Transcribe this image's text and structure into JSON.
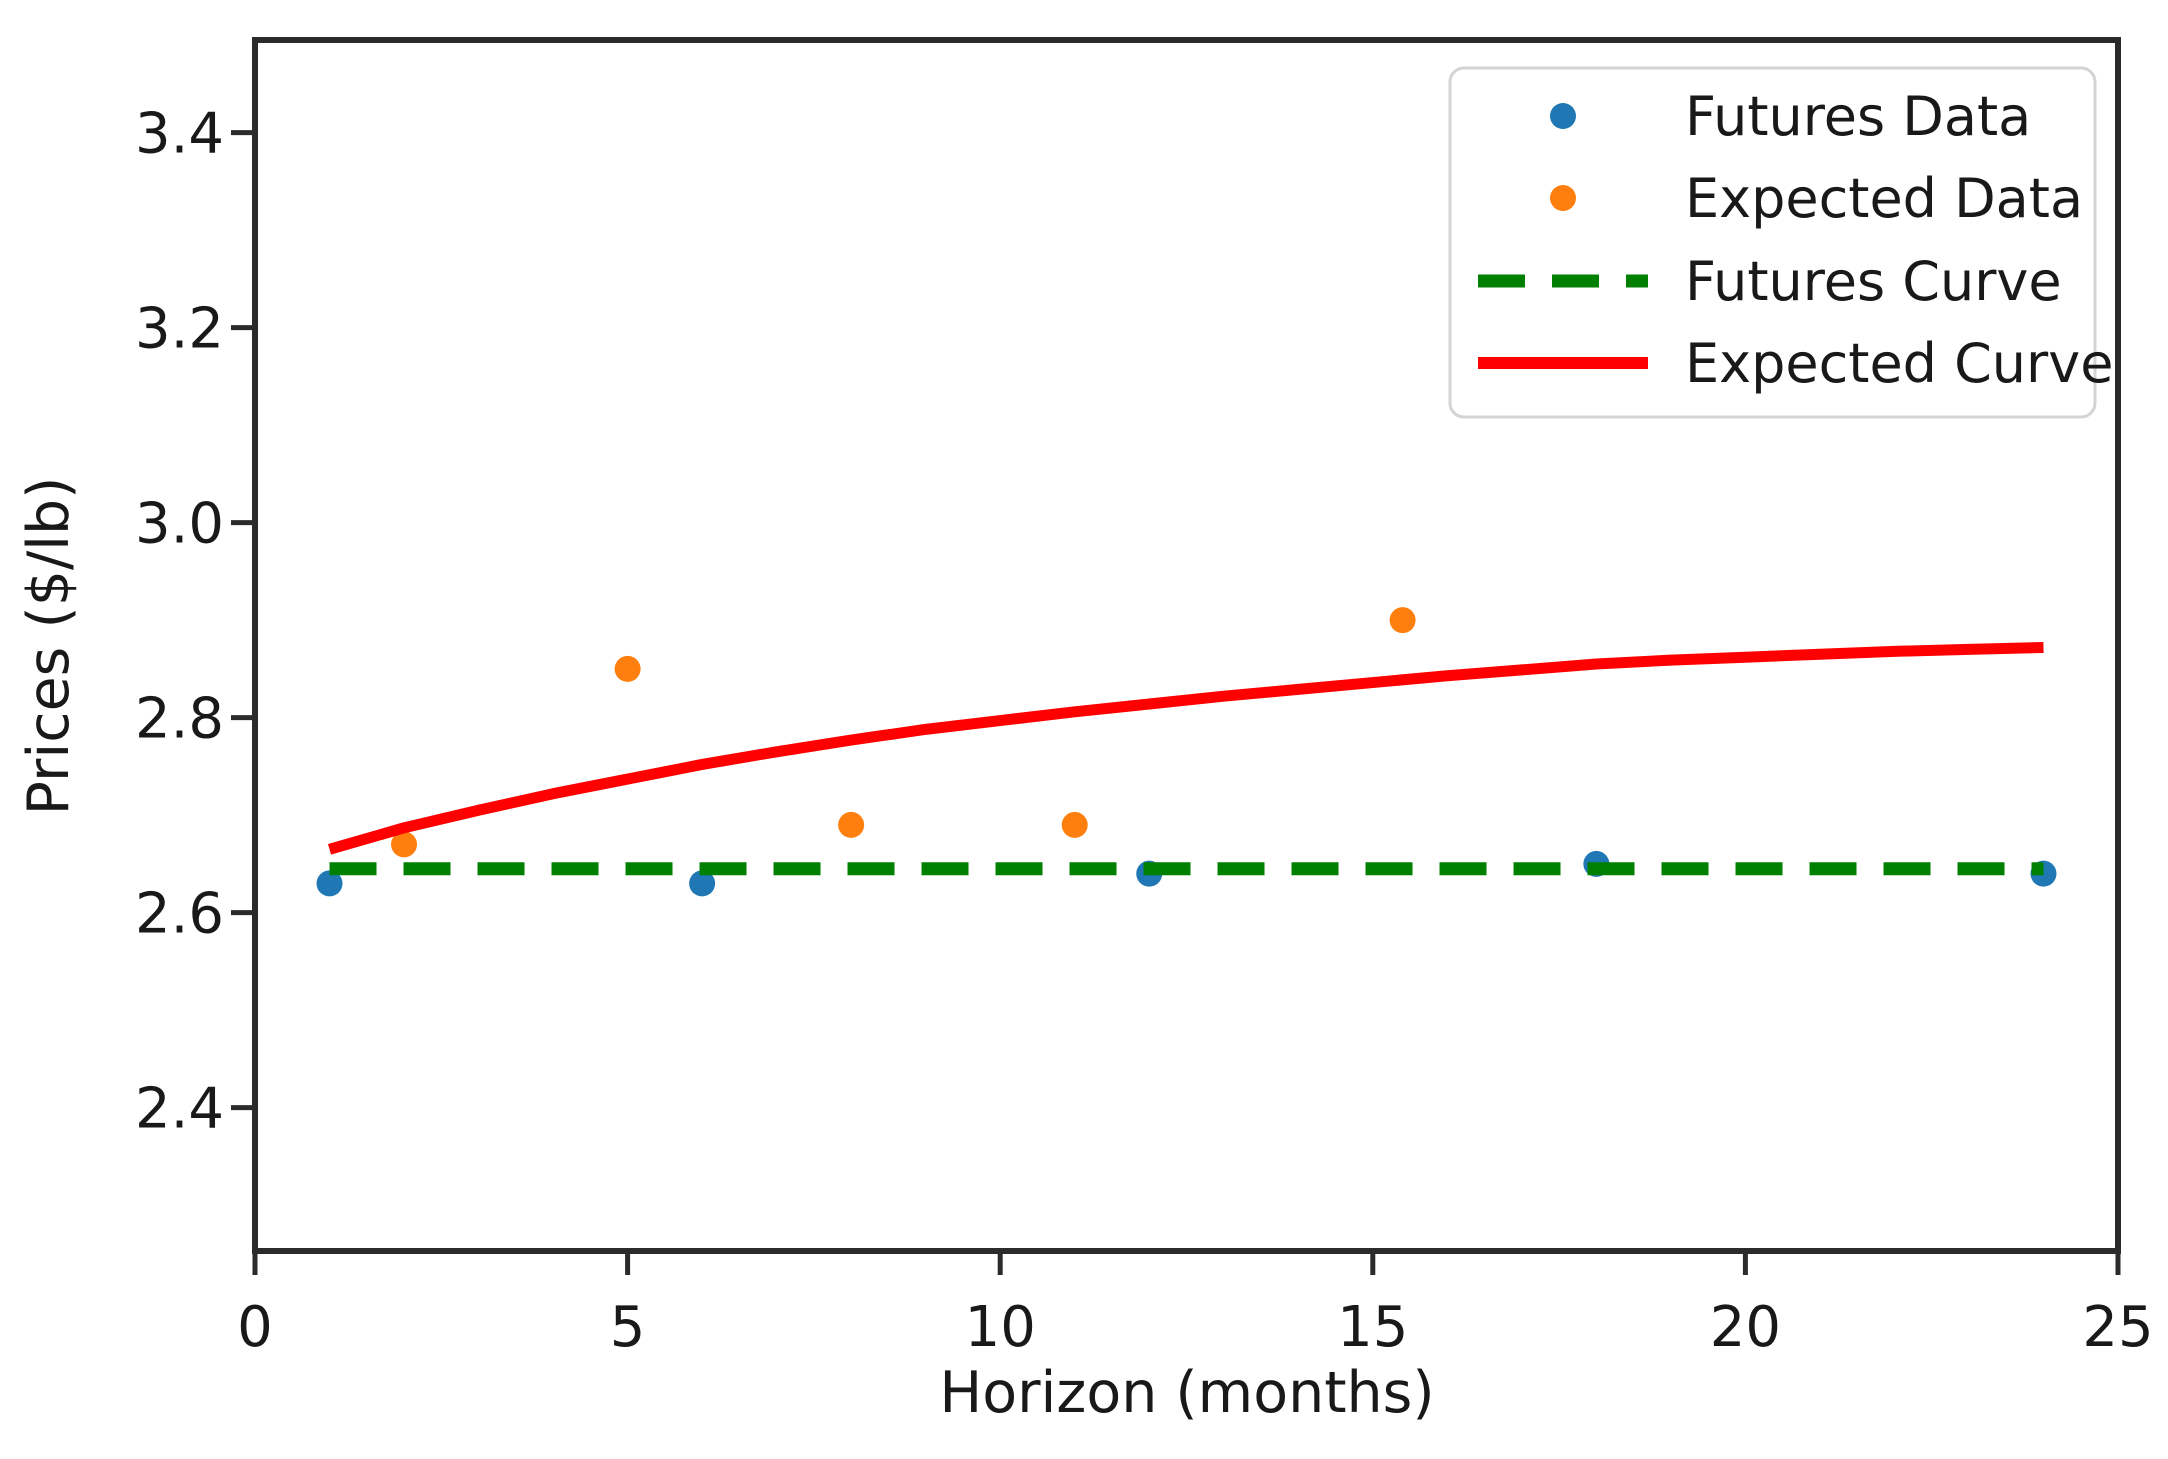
{
  "chart_data": {
    "type": "scatter",
    "title": "",
    "xlabel": "Horizon (months)",
    "ylabel": "Prices ($/lb)",
    "xlim": [
      0,
      25
    ],
    "ylim": [
      2.253,
      3.495
    ],
    "grid": false,
    "legend_position": "upper right",
    "axis_colors": {
      "spine": "#2b2b2b",
      "tick": "#2b2b2b",
      "text": "#191919"
    },
    "x_ticks": [
      {
        "v": 0,
        "label": "0"
      },
      {
        "v": 5,
        "label": "5"
      },
      {
        "v": 10,
        "label": "10"
      },
      {
        "v": 15,
        "label": "15"
      },
      {
        "v": 20,
        "label": "20"
      },
      {
        "v": 25,
        "label": "25"
      }
    ],
    "y_ticks": [
      {
        "v": 2.4,
        "label": "2.4"
      },
      {
        "v": 2.6,
        "label": "2.6"
      },
      {
        "v": 2.8,
        "label": "2.8"
      },
      {
        "v": 3.0,
        "label": "3.0"
      },
      {
        "v": 3.2,
        "label": "3.2"
      },
      {
        "v": 3.4,
        "label": "3.4"
      }
    ],
    "series": [
      {
        "name": "Futures Data",
        "kind": "scatter",
        "color": "#1f77b4",
        "points": [
          [
            1,
            2.63
          ],
          [
            6,
            2.63
          ],
          [
            12,
            2.64
          ],
          [
            18,
            2.65
          ],
          [
            24,
            2.64
          ]
        ]
      },
      {
        "name": "Expected Data",
        "kind": "scatter",
        "color": "#ff7f0e",
        "points": [
          [
            2,
            2.67
          ],
          [
            5,
            2.85
          ],
          [
            8,
            2.69
          ],
          [
            11,
            2.69
          ],
          [
            15.4,
            2.9
          ]
        ]
      },
      {
        "name": "Futures Curve",
        "kind": "line",
        "style": "dashed",
        "color": "#008000",
        "points": [
          [
            1,
            2.645
          ],
          [
            24,
            2.645
          ]
        ]
      },
      {
        "name": "Expected Curve",
        "kind": "line",
        "style": "solid",
        "color": "#ff0000",
        "points": [
          [
            1,
            2.665
          ],
          [
            2,
            2.687
          ],
          [
            3,
            2.705
          ],
          [
            4,
            2.722
          ],
          [
            5,
            2.737
          ],
          [
            6,
            2.752
          ],
          [
            7,
            2.765
          ],
          [
            8,
            2.777
          ],
          [
            9,
            2.788
          ],
          [
            10,
            2.797
          ],
          [
            11,
            2.806
          ],
          [
            12,
            2.814
          ],
          [
            13,
            2.822
          ],
          [
            14,
            2.829
          ],
          [
            15,
            2.836
          ],
          [
            16,
            2.843
          ],
          [
            17,
            2.849
          ],
          [
            18,
            2.855
          ],
          [
            19,
            2.859
          ],
          [
            20,
            2.862
          ],
          [
            21,
            2.865
          ],
          [
            22,
            2.868
          ],
          [
            23,
            2.87
          ],
          [
            24,
            2.872
          ]
        ]
      }
    ]
  }
}
